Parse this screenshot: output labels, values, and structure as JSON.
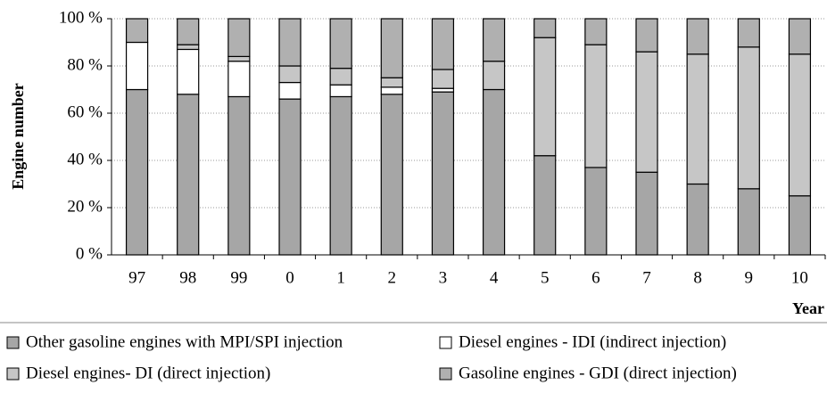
{
  "chart_data": {
    "type": "stacked_bar",
    "y_label": "Engine number",
    "x_label": "Year",
    "categories": [
      "97",
      "98",
      "99",
      "0",
      "1",
      "2",
      "3",
      "4",
      "5",
      "6",
      "7",
      "8",
      "9",
      "10"
    ],
    "series": [
      {
        "name": "Other gasoline engines with MPI/SPI injection",
        "color": "#a6a6a6",
        "values": [
          70,
          68,
          67,
          66,
          67,
          68,
          69,
          70,
          42,
          37,
          35,
          30,
          28,
          25
        ]
      },
      {
        "name": "Diesel engines - IDI (indirect injection)",
        "color": "#ffffff",
        "values": [
          20,
          19,
          15,
          7,
          5,
          3,
          1.5,
          0,
          0,
          0,
          0,
          0,
          0,
          0
        ]
      },
      {
        "name": "Diesel engines- DI (direct injection)",
        "color": "#c6c6c6",
        "values": [
          0,
          2,
          2,
          7,
          7,
          4,
          8,
          12,
          50,
          52,
          51,
          55,
          60,
          60
        ]
      },
      {
        "name": "Gasoline engines - GDI (direct injection)",
        "color": "#b0b0b0",
        "values": [
          10,
          11,
          16,
          20,
          21,
          25,
          21.5,
          18,
          8,
          11,
          14,
          15,
          12,
          15
        ]
      }
    ],
    "ylim": [
      0,
      100
    ],
    "yticks": [
      {
        "value": 0,
        "label": "0 %"
      },
      {
        "value": 20,
        "label": "20 %"
      },
      {
        "value": 40,
        "label": "40 %"
      },
      {
        "value": 60,
        "label": "60 %"
      },
      {
        "value": 80,
        "label": "80 %"
      },
      {
        "value": 100,
        "label": "100 %"
      }
    ],
    "grid": true
  }
}
